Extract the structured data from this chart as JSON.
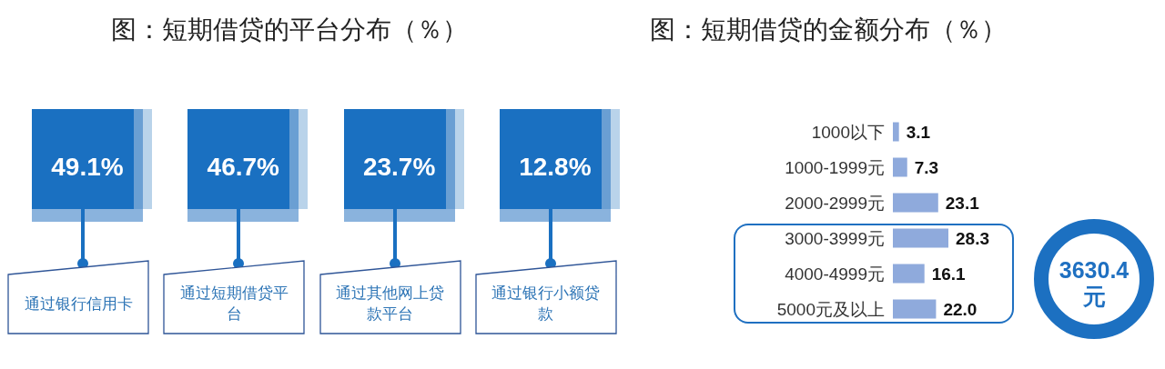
{
  "chart_data": [
    {
      "type": "other",
      "title": "图：短期借贷的平台分布（％）",
      "categories": [
        "通过银行信用卡",
        "通过短期借贷平台",
        "通过其他网上贷款平台",
        "通过银行小额贷款"
      ],
      "values": [
        49.1,
        46.7,
        23.7,
        12.8
      ],
      "value_labels": [
        "49.1%",
        "46.7%",
        "23.7%",
        "12.8%"
      ],
      "color": "#1a70c1"
    },
    {
      "type": "bar",
      "title": "图：短期借贷的金额分布（％）",
      "orientation": "horizontal",
      "categories": [
        "1000以下",
        "1000-1999元",
        "2000-2999元",
        "3000-3999元",
        "4000-4999元",
        "5000元及以上"
      ],
      "values": [
        3.1,
        7.3,
        23.1,
        28.3,
        16.1,
        22.0
      ],
      "value_labels": [
        "3.1",
        "7.3",
        "23.1",
        "28.3",
        "16.1",
        "22.0"
      ],
      "color": "#8faadc",
      "annotations": [
        "3630.4元"
      ]
    }
  ]
}
